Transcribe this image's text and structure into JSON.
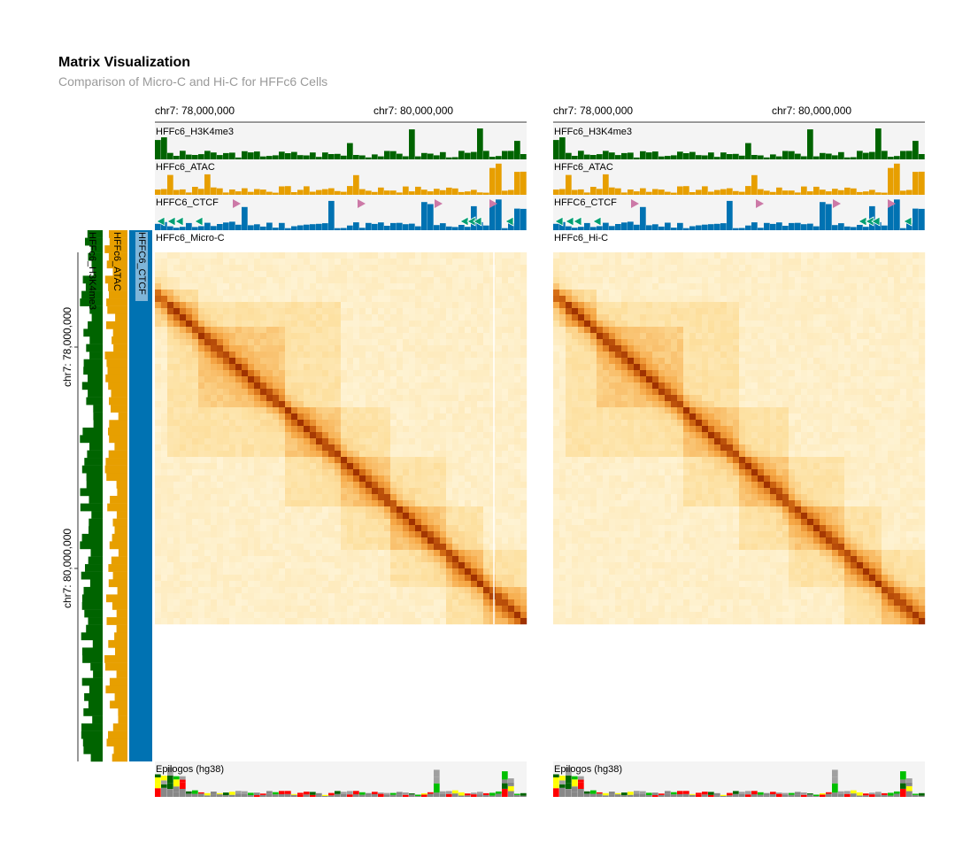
{
  "header": {
    "title": "Matrix Visualization",
    "subtitle": "Comparison of Micro-C and Hi-C for HFFc6 Cells"
  },
  "colors": {
    "h3k4me3": "#006400",
    "atac": "#E79F00",
    "ctcf": "#0072B2",
    "ctcf_forward_motif": "#CC79A7",
    "ctcf_reverse_motif": "#029F73",
    "track_background": "#f4f4f4",
    "heatmap_low": "#fff8e1",
    "heatmap_high": "#a83200"
  },
  "top_axis": {
    "labels": [
      "chr7: 78,000,000",
      "chr7: 80,000,000"
    ]
  },
  "left_axis": {
    "labels": [
      "chr7: 78,000,000",
      "chr7: 80,000,000"
    ]
  },
  "left_tracks": {
    "h3k4me3": "HFFc6_H3K4me3",
    "atac": "HFFc6_ATAC",
    "ctcf": "HFFC6_CTCF"
  },
  "panels": [
    {
      "tracks": {
        "h3k4me3": "HFFc6_H3K4me3",
        "atac": "HFFc6_ATAC",
        "ctcf": "HFFC6_CTCF"
      },
      "matrix_label": "HFFc6_Micro-C",
      "bottom_track": "Epilogos (hg38)"
    },
    {
      "tracks": {
        "h3k4me3": "HFFc6_H3K4me3",
        "atac": "HFFc6_ATAC",
        "ctcf": "HFFC6_CTCF"
      },
      "matrix_label": "HFFc6_Hi-C",
      "bottom_track": "Epilogos (hg38)"
    }
  ]
}
